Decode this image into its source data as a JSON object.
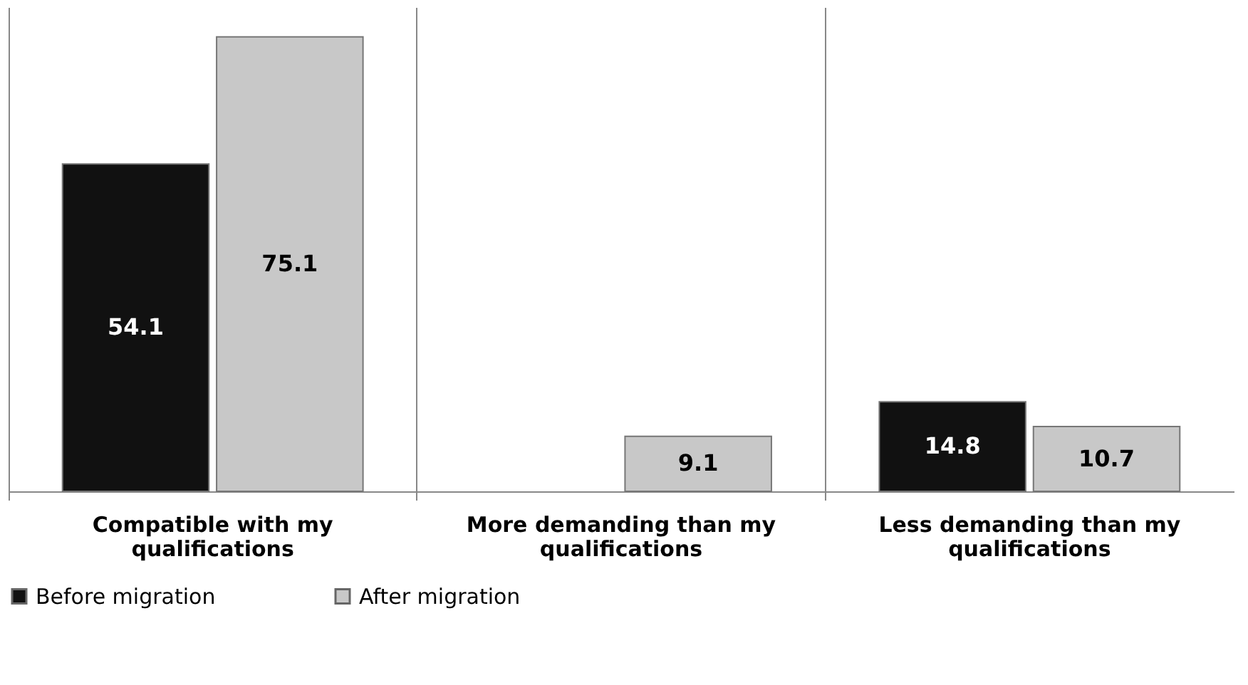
{
  "chart_data": {
    "type": "bar",
    "categories": [
      "Compatible with my qualifications",
      "More demanding than my qualifications",
      "Less demanding than my qualifications"
    ],
    "series": [
      {
        "name": "Before migration",
        "color": "#111111",
        "values": [
          54.1,
          null,
          14.8
        ]
      },
      {
        "name": "After migration",
        "color": "#c8c8c8",
        "values": [
          75.1,
          9.1,
          10.7
        ]
      }
    ],
    "ylim": [
      0,
      80
    ],
    "tick_labels": "x",
    "data_labels": true,
    "grid": "x",
    "legend": "bottom"
  }
}
